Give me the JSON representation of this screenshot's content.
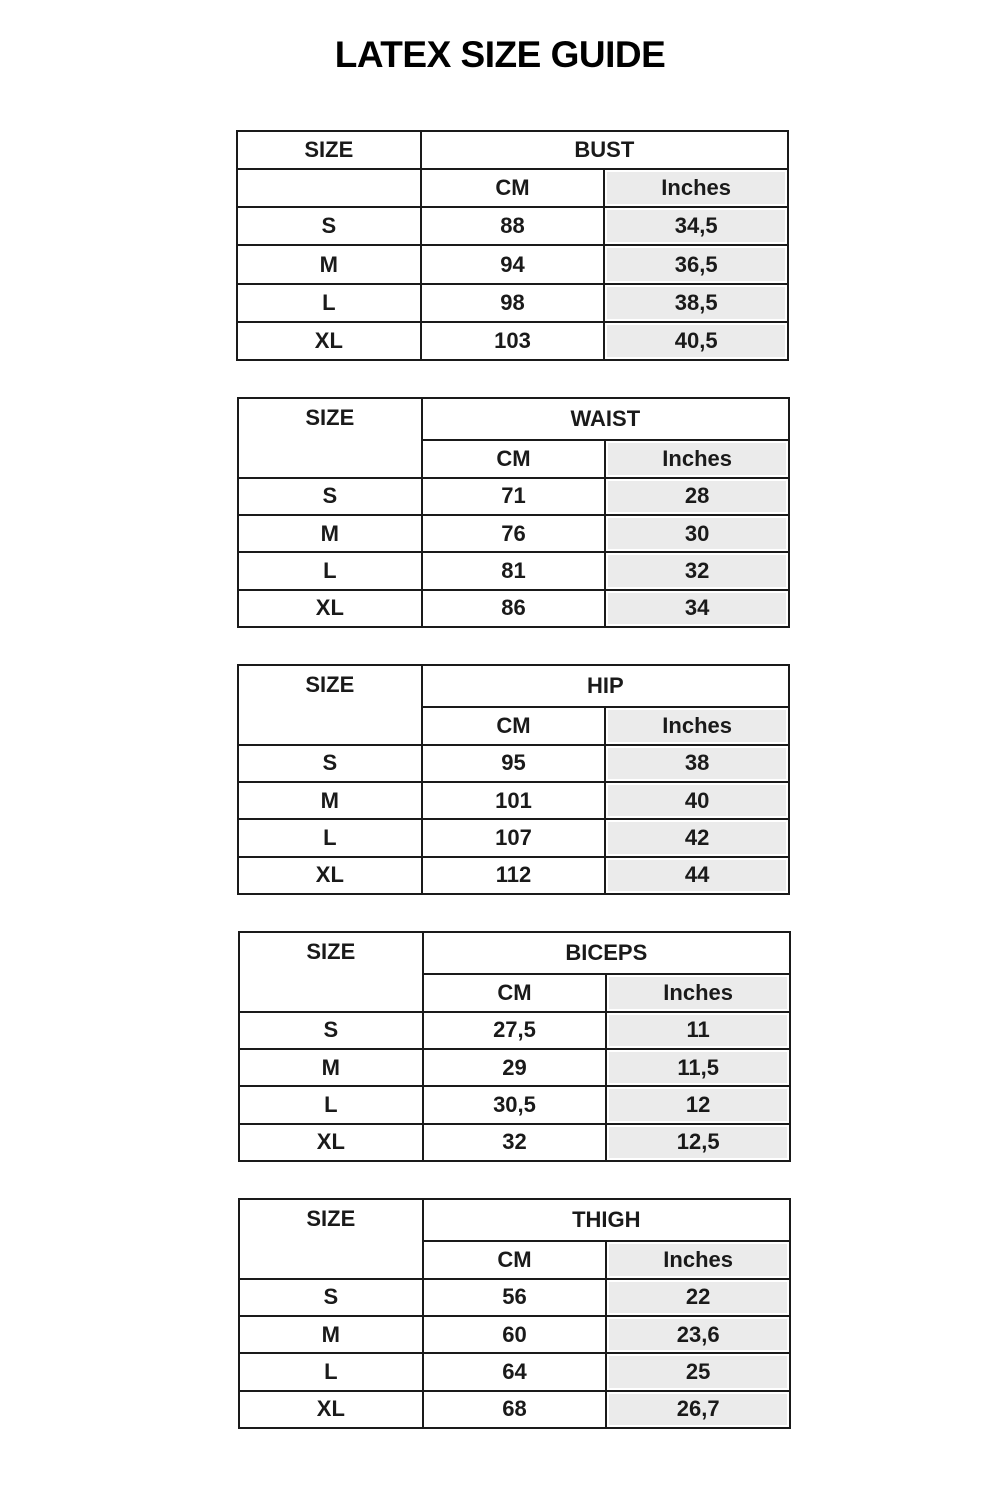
{
  "title": "LATEX SIZE GUIDE",
  "colors": {
    "inches_fill": "#ebebeb",
    "border": "#1a1a1a"
  },
  "tables": [
    {
      "size_label": "SIZE",
      "measure": "BUST",
      "cm_label": "CM",
      "inches_label": "Inches",
      "size_merged": false,
      "rows": [
        {
          "size": "S",
          "cm": "88",
          "inches": "34,5"
        },
        {
          "size": "M",
          "cm": "94",
          "inches": "36,5"
        },
        {
          "size": "L",
          "cm": "98",
          "inches": "38,5"
        },
        {
          "size": "XL",
          "cm": "103",
          "inches": "40,5"
        }
      ]
    },
    {
      "size_label": "SIZE",
      "measure": "WAIST",
      "cm_label": "CM",
      "inches_label": "Inches",
      "size_merged": true,
      "rows": [
        {
          "size": "S",
          "cm": "71",
          "inches": "28"
        },
        {
          "size": "M",
          "cm": "76",
          "inches": "30"
        },
        {
          "size": "L",
          "cm": "81",
          "inches": "32"
        },
        {
          "size": "XL",
          "cm": "86",
          "inches": "34"
        }
      ]
    },
    {
      "size_label": "SIZE",
      "measure": "HIP",
      "cm_label": "CM",
      "inches_label": "Inches",
      "size_merged": true,
      "rows": [
        {
          "size": "S",
          "cm": "95",
          "inches": "38"
        },
        {
          "size": "M",
          "cm": "101",
          "inches": "40"
        },
        {
          "size": "L",
          "cm": "107",
          "inches": "42"
        },
        {
          "size": "XL",
          "cm": "112",
          "inches": "44"
        }
      ]
    },
    {
      "size_label": "SIZE",
      "measure": "BICEPS",
      "cm_label": "CM",
      "inches_label": "Inches",
      "size_merged": true,
      "rows": [
        {
          "size": "S",
          "cm": "27,5",
          "inches": "11"
        },
        {
          "size": "M",
          "cm": "29",
          "inches": "11,5"
        },
        {
          "size": "L",
          "cm": "30,5",
          "inches": "12"
        },
        {
          "size": "XL",
          "cm": "32",
          "inches": "12,5"
        }
      ]
    },
    {
      "size_label": "SIZE",
      "measure": "THIGH",
      "cm_label": "CM",
      "inches_label": "Inches",
      "size_merged": true,
      "rows": [
        {
          "size": "S",
          "cm": "56",
          "inches": "22"
        },
        {
          "size": "M",
          "cm": "60",
          "inches": "23,6"
        },
        {
          "size": "L",
          "cm": "64",
          "inches": "25"
        },
        {
          "size": "XL",
          "cm": "68",
          "inches": "26,7"
        }
      ]
    }
  ]
}
